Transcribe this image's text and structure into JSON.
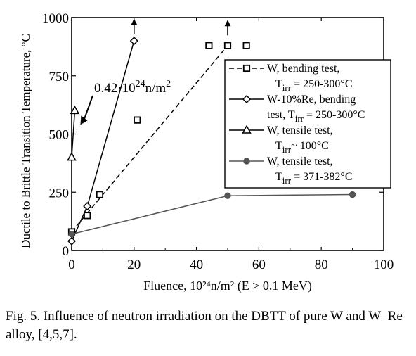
{
  "caption": {
    "text": "Fig. 5. Influence of neutron irradiation on the DBTT of pure W and W–Re alloy, [4,5,7]."
  },
  "chart_data": {
    "type": "line",
    "title": "",
    "xlabel": "Fluence, 10²⁴n/m² (E > 0.1 MeV)",
    "ylabel": "Ductile to Brittle Transition Temperature, °C",
    "xlim": [
      0,
      100
    ],
    "ylim": [
      0,
      1000
    ],
    "x_ticks": [
      "0",
      "20",
      "40",
      "60",
      "80",
      "100"
    ],
    "y_ticks": [
      "0",
      "250",
      "500",
      "750",
      "1000"
    ],
    "grid": false,
    "legend_position": "right",
    "annotation": {
      "text_main": "0.42·10",
      "text_sup": "24",
      "text_end": "n/m",
      "text_sup2": "2",
      "x": 1,
      "y": 600
    },
    "series": [
      {
        "key": "w_bending",
        "legend_line1": "W,  bending test,",
        "legend_line2_main": "T",
        "legend_line2_sub": "irr",
        "legend_line2_rest": " = 250-300°C",
        "marker": "square",
        "line_style": "dashed",
        "color": "#000000",
        "points": [
          [
            0,
            80
          ],
          [
            5,
            150
          ],
          [
            9,
            240
          ],
          [
            21,
            560
          ],
          [
            44,
            880
          ],
          [
            50,
            880
          ],
          [
            56,
            880
          ]
        ],
        "line": [
          [
            0,
            80
          ],
          [
            20,
            400
          ],
          [
            50,
            880
          ]
        ],
        "arrow_at": [
          50,
          990
        ]
      },
      {
        "key": "w_re_bending",
        "legend_line1": "W-10%Re,  bending",
        "legend_line2_main": "test,  T",
        "legend_line2_sub": "irr",
        "legend_line2_rest": " = 250-300°C",
        "marker": "diamond",
        "line_style": "solid",
        "color": "#000000",
        "points": [
          [
            0,
            40
          ],
          [
            5,
            190
          ],
          [
            20,
            900
          ]
        ],
        "line": [
          [
            0,
            40
          ],
          [
            5,
            190
          ],
          [
            20,
            900
          ]
        ],
        "arrow_at": [
          20,
          995
        ]
      },
      {
        "key": "w_tensile_low",
        "legend_line1": "W, tensile test,",
        "legend_line2_main": "T",
        "legend_line2_sub": "irr",
        "legend_line2_rest": "~ 100°C",
        "marker": "triangle",
        "line_style": "solid",
        "color": "#000000",
        "points": [
          [
            0,
            400
          ],
          [
            1,
            600
          ]
        ],
        "line": [
          [
            0,
            400
          ],
          [
            1,
            600
          ]
        ]
      },
      {
        "key": "w_tensile_high",
        "legend_line1": "W, tensile test,",
        "legend_line2_main": "T",
        "legend_line2_sub": "irr",
        "legend_line2_rest": " = 371-382°C",
        "marker": "circle",
        "line_style": "solid",
        "color": "#555555",
        "points": [
          [
            0,
            70
          ],
          [
            50,
            235
          ],
          [
            90,
            240
          ]
        ],
        "line": [
          [
            0,
            70
          ],
          [
            50,
            235
          ],
          [
            90,
            240
          ]
        ]
      }
    ]
  }
}
